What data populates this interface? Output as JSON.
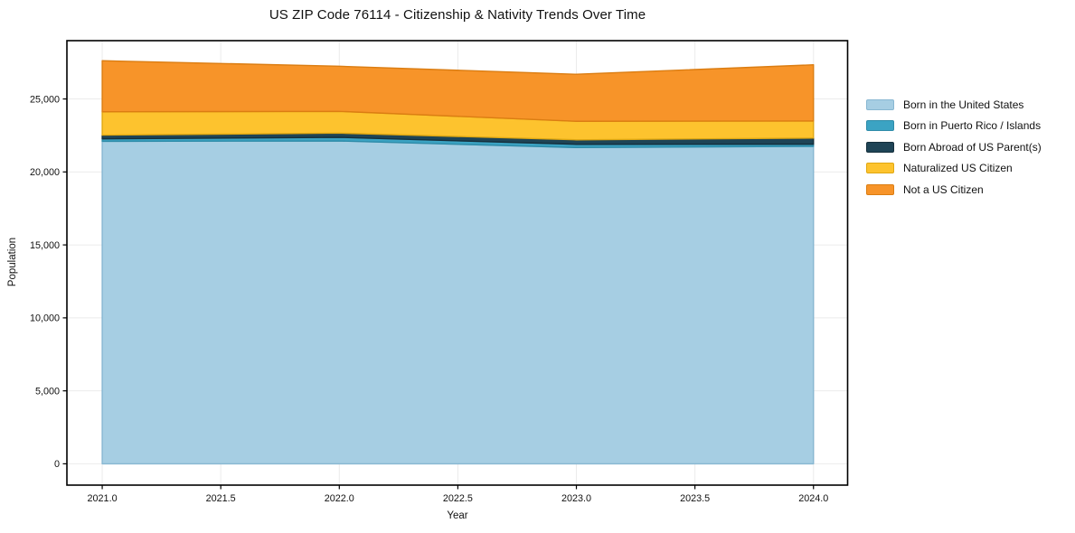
{
  "chart_data": {
    "type": "area",
    "stacked": true,
    "title": "US ZIP Code 76114 - Citizenship & Nativity Trends Over Time",
    "xlabel": "Year",
    "ylabel": "Population",
    "x": [
      2021,
      2022,
      2023,
      2024
    ],
    "series": [
      {
        "name": "Born in the United States",
        "color": "#A6CEE3",
        "edge": "#88B7D2",
        "values": [
          22100,
          22120,
          21670,
          21750
        ]
      },
      {
        "name": "Born in Puerto Rico / Islands",
        "color": "#3BA3C3",
        "edge": "#2E8CA9",
        "values": [
          170,
          250,
          220,
          150
        ]
      },
      {
        "name": "Born Abroad of US Parent(s)",
        "color": "#1E4456",
        "edge": "#152F3C",
        "values": [
          250,
          290,
          310,
          420
        ]
      },
      {
        "name": "Naturalized US Citizen",
        "color": "#FDC32E",
        "edge": "#E0A812",
        "values": [
          1600,
          1490,
          1270,
          1170
        ]
      },
      {
        "name": "Not a US Citizen",
        "color": "#F79429",
        "edge": "#DB7D12",
        "values": [
          3500,
          3090,
          3220,
          3850
        ]
      }
    ],
    "x_ticks": [
      {
        "value": 2021.0,
        "label": "2021.0"
      },
      {
        "value": 2021.5,
        "label": "2021.5"
      },
      {
        "value": 2022.0,
        "label": "2022.0"
      },
      {
        "value": 2022.5,
        "label": "2022.5"
      },
      {
        "value": 2023.0,
        "label": "2023.0"
      },
      {
        "value": 2023.5,
        "label": "2023.5"
      },
      {
        "value": 2024.0,
        "label": "2024.0"
      }
    ],
    "y_ticks": [
      {
        "value": 0,
        "label": "0"
      },
      {
        "value": 5000,
        "label": "5,000"
      },
      {
        "value": 10000,
        "label": "10,000"
      },
      {
        "value": 15000,
        "label": "15,000"
      },
      {
        "value": 20000,
        "label": "20,000"
      },
      {
        "value": 25000,
        "label": "25,000"
      }
    ],
    "xlim": [
      2020.851,
      2024.144
    ],
    "ylim": [
      -1460,
      28995
    ],
    "grid": true,
    "grid_color": "#ebebeb",
    "axis_color": "#000000",
    "legend_position": "right"
  }
}
